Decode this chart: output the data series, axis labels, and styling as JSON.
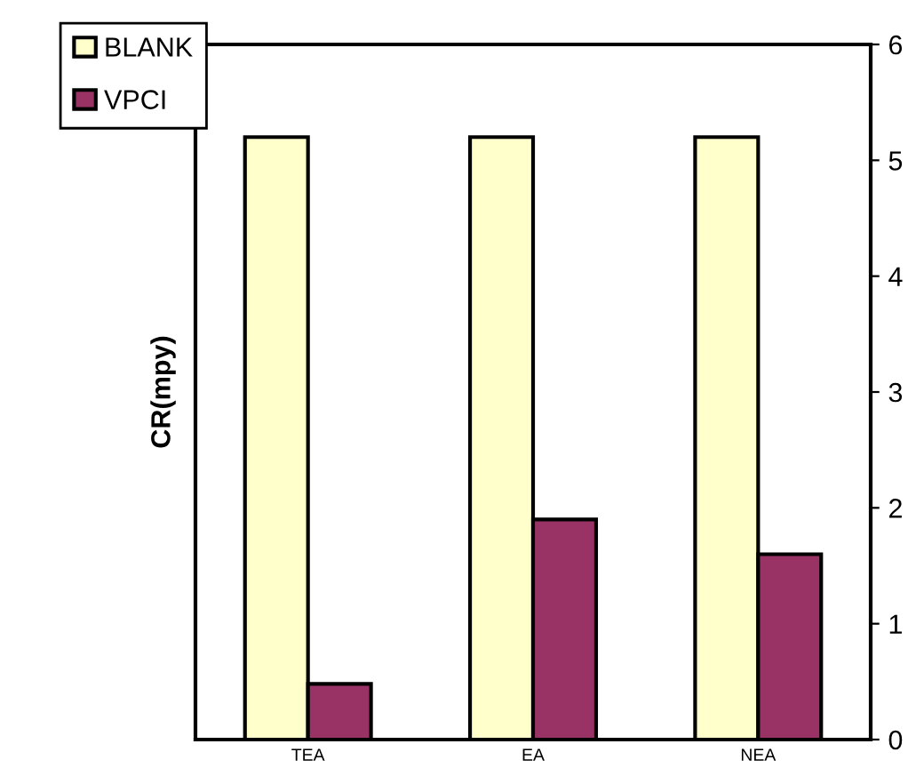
{
  "chart_data": {
    "type": "bar",
    "ylabel": "CR(mpy)",
    "categories": [
      "TEA",
      "EA",
      "NEA"
    ],
    "series": [
      {
        "name": "BLANK",
        "color": "#ffffcc",
        "values": [
          5.2,
          5.2,
          5.2
        ]
      },
      {
        "name": "VPCI",
        "color": "#993366",
        "values": [
          0.48,
          1.9,
          1.6
        ]
      }
    ],
    "ylim": [
      0,
      6
    ],
    "yticks": [
      0,
      1,
      2,
      3,
      4,
      5,
      6
    ],
    "legend": "top left",
    "grid": false
  }
}
